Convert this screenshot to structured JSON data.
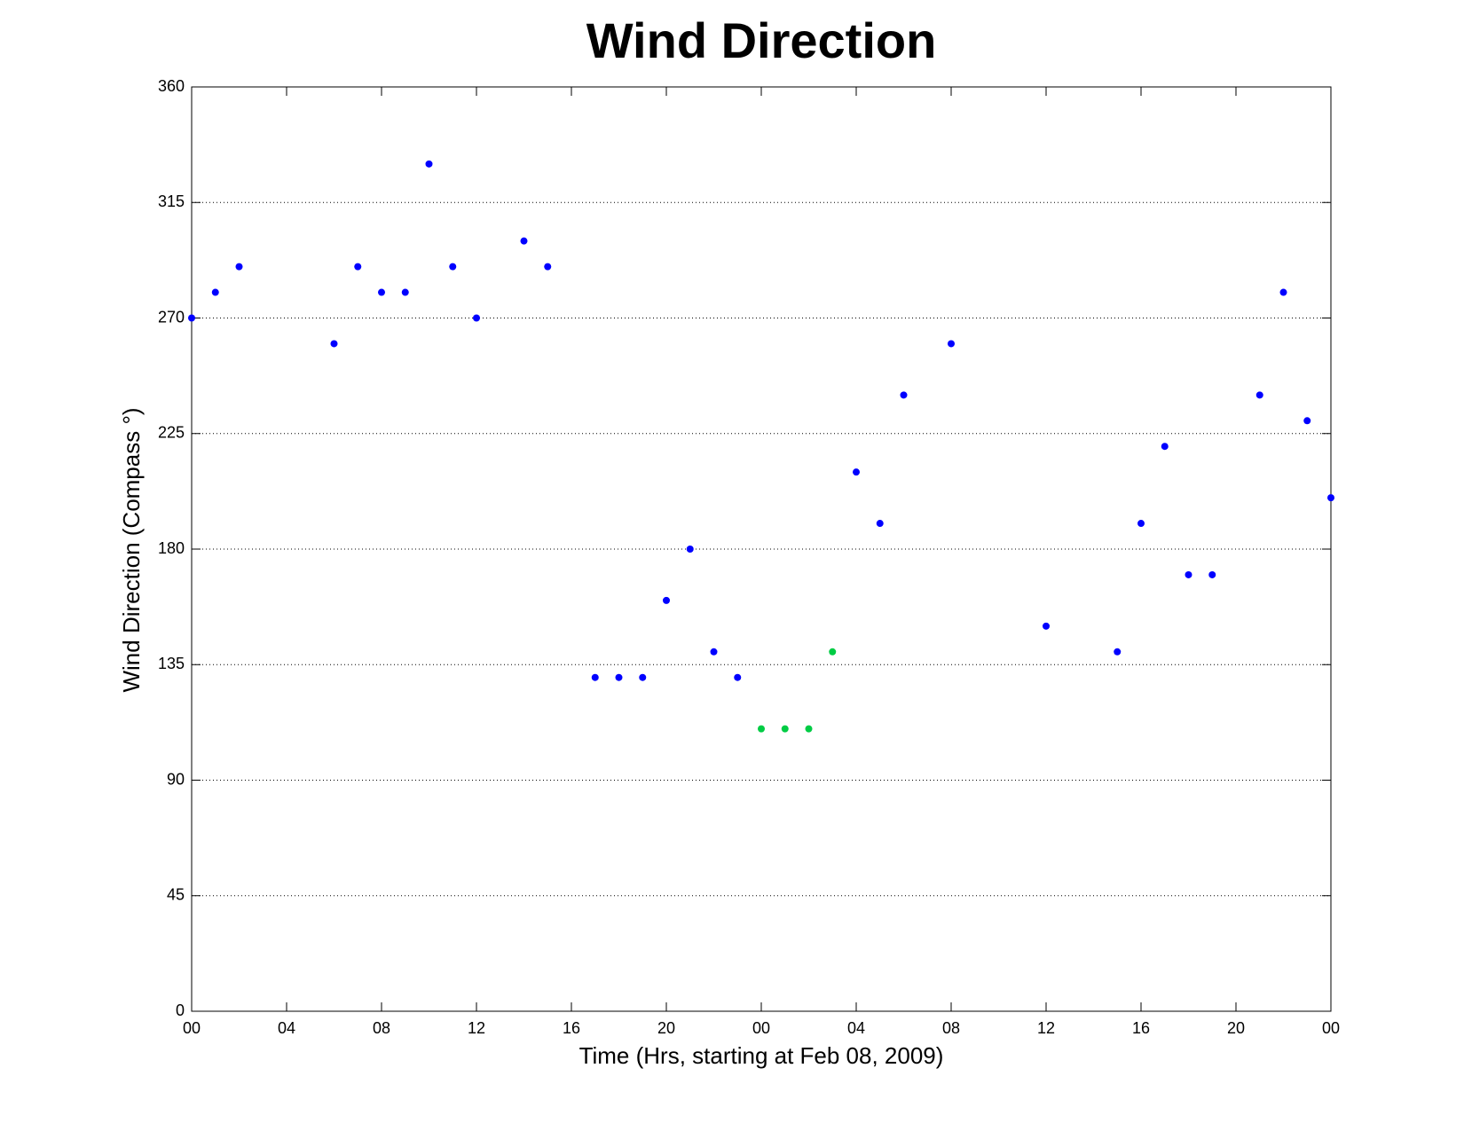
{
  "chart_data": {
    "type": "scatter",
    "title": "Wind Direction",
    "x_label": "Time (Hrs, starting at Feb 08, 2009)",
    "y_label": "Wind Direction (Compass °)",
    "xlim": [
      0,
      48
    ],
    "ylim": [
      0,
      360
    ],
    "xticks": [
      {
        "value": 0,
        "label": "00"
      },
      {
        "value": 4,
        "label": "04"
      },
      {
        "value": 8,
        "label": "08"
      },
      {
        "value": 12,
        "label": "12"
      },
      {
        "value": 16,
        "label": "16"
      },
      {
        "value": 20,
        "label": "20"
      },
      {
        "value": 24,
        "label": "00"
      },
      {
        "value": 28,
        "label": "04"
      },
      {
        "value": 32,
        "label": "08"
      },
      {
        "value": 36,
        "label": "12"
      },
      {
        "value": 40,
        "label": "16"
      },
      {
        "value": 44,
        "label": "20"
      },
      {
        "value": 48,
        "label": "00"
      }
    ],
    "yticks": [
      0,
      45,
      90,
      135,
      180,
      225,
      270,
      315,
      360
    ],
    "grid": "y",
    "series": [
      {
        "color": "#0000ff",
        "x": [
          0,
          1,
          2,
          6,
          7,
          8,
          9,
          10,
          11,
          12,
          14,
          15,
          17,
          18,
          19,
          20,
          21,
          22,
          23,
          28,
          29,
          30,
          32,
          36,
          39,
          40,
          41,
          42,
          43,
          45,
          46,
          47,
          48
        ],
        "values": [
          270,
          280,
          290,
          260,
          290,
          280,
          280,
          330,
          290,
          270,
          300,
          290,
          130,
          130,
          130,
          160,
          180,
          140,
          130,
          210,
          190,
          240,
          260,
          150,
          140,
          190,
          220,
          170,
          170,
          240,
          280,
          230,
          200
        ]
      },
      {
        "color": "#00cc44",
        "x": [
          24,
          25,
          26,
          27
        ],
        "values": [
          110,
          110,
          110,
          140
        ]
      }
    ]
  }
}
